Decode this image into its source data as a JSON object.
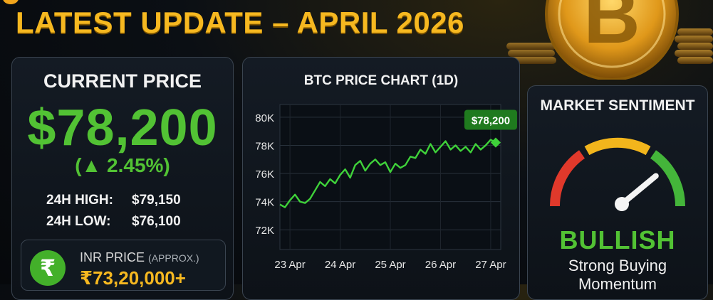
{
  "headline": "LATEST UPDATE – APRIL 2026",
  "price_panel": {
    "title": "CURRENT PRICE",
    "price": "$78,200",
    "change": "(▲ 2.45%)",
    "high_label": "24H HIGH:",
    "high_value": "$79,150",
    "low_label": "24H LOW:",
    "low_value": "$76,100",
    "inr_label": "INR PRICE",
    "inr_note": "(APPROX.)",
    "inr_value": "₹73,20,000+",
    "rupee_symbol": "₹"
  },
  "chart_panel": {
    "title": "BTC PRICE CHART (1D)",
    "callout": "$78,200"
  },
  "chart_data": {
    "type": "line",
    "title": "BTC PRICE CHART (1D)",
    "xlabel": "",
    "ylabel": "",
    "x_ticks": [
      "23 Apr",
      "24 Apr",
      "25 Apr",
      "26 Apr",
      "27 Apr"
    ],
    "y_ticks": [
      "72K",
      "74K",
      "76K",
      "78K",
      "80K"
    ],
    "ylim": [
      71000,
      80500
    ],
    "grid": true,
    "series": [
      {
        "color": "#3fd23a",
        "x": [
          0,
          0.1,
          0.2,
          0.3,
          0.4,
          0.5,
          0.6,
          0.7,
          0.8,
          0.9,
          1.0,
          1.1,
          1.2,
          1.3,
          1.4,
          1.5,
          1.6,
          1.7,
          1.8,
          1.9,
          2.0,
          2.1,
          2.2,
          2.3,
          2.4,
          2.5,
          2.6,
          2.7,
          2.8,
          2.9,
          3.0,
          3.1,
          3.2,
          3.3,
          3.4,
          3.5,
          3.6,
          3.7,
          3.8,
          3.9,
          4.0,
          4.1,
          4.2,
          4.3
        ],
        "y": [
          73800,
          73600,
          74100,
          74500,
          74000,
          73900,
          74200,
          74800,
          75400,
          75100,
          75600,
          75300,
          75900,
          76300,
          75700,
          76600,
          76900,
          76200,
          76700,
          77000,
          76600,
          76800,
          76100,
          76700,
          76400,
          76600,
          77200,
          77100,
          77700,
          77400,
          78100,
          77500,
          77900,
          78300,
          77700,
          78000,
          77600,
          77900,
          77500,
          78100,
          77700,
          78000,
          78400,
          78200
        ]
      }
    ]
  },
  "sentiment_panel": {
    "title": "MARKET SENTIMENT",
    "status": "BULLISH",
    "subtitle_line1": "Strong Buying",
    "subtitle_line2": "Momentum",
    "gauge_value": 0.78
  },
  "colors": {
    "accent_gold": "#f6b820",
    "bull_green": "#52c234",
    "gauge_red": "#e0392b",
    "gauge_yellow": "#f2b51c",
    "gauge_green": "#44b53a"
  }
}
